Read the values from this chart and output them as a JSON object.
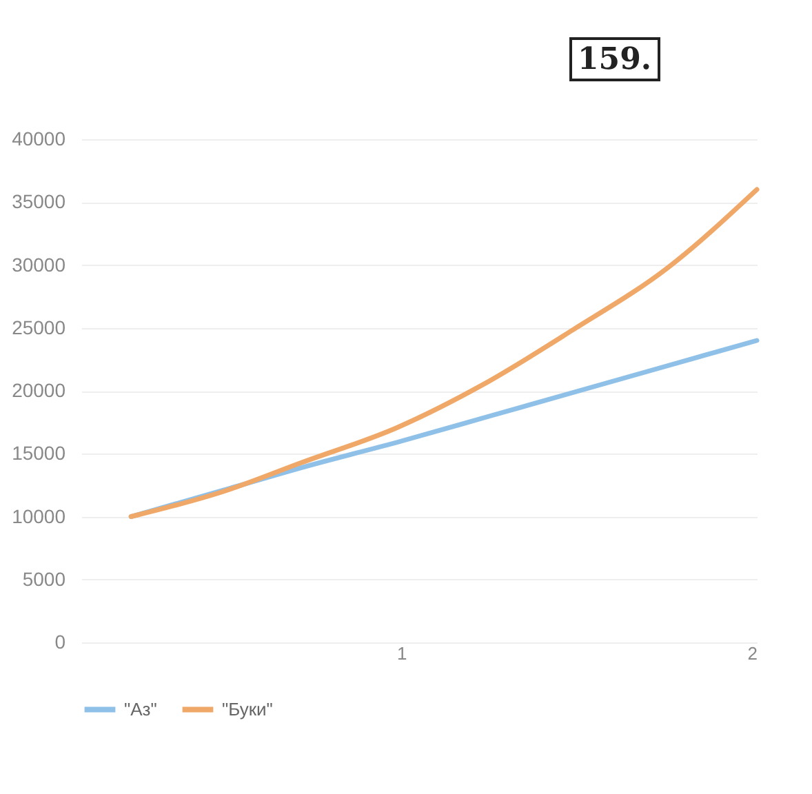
{
  "chart_data": {
    "type": "line",
    "annotations": [
      "159."
    ],
    "xlim": [
      0.1,
      2
    ],
    "xticks": [
      1,
      2
    ],
    "ylim": [
      0,
      40000
    ],
    "yticks": [
      0,
      5000,
      10000,
      15000,
      20000,
      25000,
      30000,
      35000,
      40000
    ],
    "grid": "y",
    "legend": "bottom",
    "marker": "none",
    "line_style": "solid",
    "series": [
      {
        "name": "\"Аз\"",
        "color": "#8fc0e8",
        "x": [
          0.24,
          0.5,
          0.72,
          1,
          1.25,
          1.5,
          1.75,
          2
        ],
        "values": [
          10000,
          12100,
          13900,
          16000,
          18000,
          20000,
          22000,
          24000
        ]
      },
      {
        "name": "\"Буки\"",
        "color": "#f0a868",
        "x": [
          0.24,
          0.5,
          0.72,
          0.99,
          1.23,
          1.48,
          1.75,
          2
        ],
        "values": [
          10000,
          12000,
          14300,
          17100,
          20500,
          24800,
          29800,
          36000
        ]
      }
    ]
  }
}
